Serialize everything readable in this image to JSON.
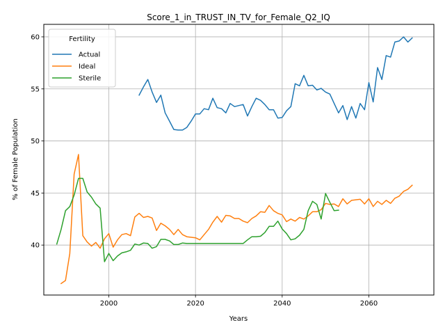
{
  "chart_data": {
    "type": "line",
    "title": "Score_1_in_TRUST_IN_TV_for_Female_Q2_IQ",
    "xlabel": "Years",
    "ylabel": "% of Female Population",
    "xlim": [
      1985,
      2075
    ],
    "ylim": [
      35.2,
      61.2
    ],
    "x_ticks": [
      2000,
      2020,
      2040,
      2060
    ],
    "y_ticks": [
      40,
      45,
      50,
      55,
      60
    ],
    "grid": true,
    "legend": {
      "title": "Fertility",
      "placement": "top-left"
    },
    "series": [
      {
        "name": "Actual",
        "color": "#1f77b4",
        "x": [
          2007,
          2008,
          2009,
          2010,
          2011,
          2012,
          2013,
          2014,
          2015,
          2016,
          2017,
          2018,
          2019,
          2020,
          2021,
          2022,
          2023,
          2024,
          2025,
          2026,
          2027,
          2028,
          2029,
          2030,
          2031,
          2032,
          2033,
          2034,
          2035,
          2036,
          2037,
          2038,
          2039,
          2040,
          2041,
          2042,
          2043,
          2044,
          2045,
          2046,
          2047,
          2048,
          2049,
          2050,
          2051,
          2052,
          2053,
          2054,
          2055,
          2056,
          2057,
          2058,
          2059,
          2060,
          2061,
          2062,
          2063,
          2064,
          2065,
          2066,
          2067,
          2068,
          2069,
          2070
        ],
        "y": [
          54.4,
          55.2,
          55.9,
          54.7,
          53.7,
          54.4,
          52.7,
          51.9,
          51.1,
          51.05,
          51.05,
          51.3,
          51.9,
          52.6,
          52.6,
          53.1,
          53.0,
          54.1,
          53.2,
          53.1,
          52.7,
          53.6,
          53.3,
          53.4,
          53.5,
          52.4,
          53.3,
          54.1,
          53.9,
          53.5,
          53.0,
          53.0,
          52.2,
          52.25,
          52.9,
          53.3,
          55.5,
          55.3,
          56.3,
          55.3,
          55.35,
          54.9,
          55.05,
          54.7,
          54.5,
          53.6,
          52.7,
          53.4,
          52.05,
          53.3,
          52.2,
          53.6,
          53.0,
          55.6,
          53.75,
          57.05,
          55.9,
          58.2,
          58.05,
          59.5,
          59.6,
          60.0,
          59.5,
          59.9
        ]
      },
      {
        "name": "Ideal",
        "color": "#ff7f0e",
        "x": [
          1989,
          1990,
          1991,
          1992,
          1993,
          1994,
          1995,
          1996,
          1997,
          1998,
          1999,
          2000,
          2001,
          2002,
          2003,
          2004,
          2005,
          2006,
          2007,
          2008,
          2009,
          2010,
          2011,
          2012,
          2013,
          2014,
          2015,
          2016,
          2017,
          2018,
          2019,
          2020,
          2021,
          2022,
          2023,
          2024,
          2025,
          2026,
          2027,
          2028,
          2029,
          2030,
          2031,
          2032,
          2033,
          2034,
          2035,
          2036,
          2037,
          2038,
          2039,
          2040,
          2041,
          2042,
          2043,
          2044,
          2045,
          2046,
          2047,
          2048,
          2049,
          2050,
          2051,
          2052,
          2053,
          2054,
          2055,
          2056,
          2057,
          2058,
          2059,
          2060,
          2061,
          2062,
          2063,
          2064,
          2065,
          2066,
          2067,
          2068,
          2069,
          2070
        ],
        "y": [
          36.3,
          36.6,
          39.2,
          46.8,
          48.7,
          40.9,
          40.3,
          39.9,
          40.25,
          39.7,
          40.6,
          41.1,
          39.8,
          40.5,
          41.0,
          41.1,
          40.9,
          42.7,
          43.05,
          42.65,
          42.75,
          42.6,
          41.4,
          42.1,
          41.85,
          41.5,
          41.0,
          41.5,
          41.0,
          40.8,
          40.75,
          40.7,
          40.5,
          41.0,
          41.5,
          42.2,
          42.75,
          42.2,
          42.85,
          42.8,
          42.55,
          42.55,
          42.3,
          42.15,
          42.55,
          42.8,
          43.2,
          43.15,
          43.8,
          43.3,
          43.05,
          42.9,
          42.25,
          42.5,
          42.3,
          42.65,
          42.5,
          42.8,
          43.2,
          43.2,
          43.4,
          44.0,
          43.9,
          43.95,
          43.7,
          44.45,
          43.95,
          44.3,
          44.35,
          44.4,
          43.95,
          44.45,
          43.7,
          44.2,
          43.9,
          44.3,
          44.0,
          44.5,
          44.7,
          45.15,
          45.35,
          45.75
        ]
      },
      {
        "name": "Sterile",
        "color": "#2ca02c",
        "x": [
          1988,
          1989,
          1990,
          1991,
          1992,
          1993,
          1994,
          1995,
          1996,
          1997,
          1998,
          1999,
          2000,
          2001,
          2002,
          2003,
          2004,
          2005,
          2006,
          2007,
          2008,
          2009,
          2010,
          2011,
          2012,
          2013,
          2014,
          2015,
          2016,
          2017,
          2018,
          2019,
          2020,
          2021,
          2022,
          2023,
          2024,
          2025,
          2026,
          2027,
          2028,
          2029,
          2030,
          2031,
          2032,
          2033,
          2034,
          2035,
          2036,
          2037,
          2038,
          2039,
          2040,
          2041,
          2042,
          2043,
          2044,
          2045,
          2046,
          2047,
          2048,
          2049,
          2050,
          2051,
          2052,
          2053
        ],
        "y": [
          40.1,
          41.5,
          43.3,
          43.7,
          44.8,
          46.4,
          46.4,
          45.1,
          44.6,
          43.95,
          43.55,
          38.4,
          39.2,
          38.5,
          38.95,
          39.25,
          39.35,
          39.5,
          40.1,
          40.0,
          40.2,
          40.15,
          39.7,
          39.85,
          40.55,
          40.55,
          40.4,
          40.05,
          40.05,
          40.2,
          40.15,
          40.15,
          40.15,
          40.15,
          40.15,
          40.15,
          40.15,
          40.15,
          40.15,
          40.15,
          40.15,
          40.15,
          40.15,
          40.15,
          40.5,
          40.8,
          40.8,
          40.85,
          41.2,
          41.8,
          41.8,
          42.3,
          41.55,
          41.1,
          40.5,
          40.6,
          40.95,
          41.5,
          43.3,
          44.2,
          43.9,
          42.5,
          44.95,
          44.1,
          43.3,
          43.35
        ]
      }
    ]
  }
}
